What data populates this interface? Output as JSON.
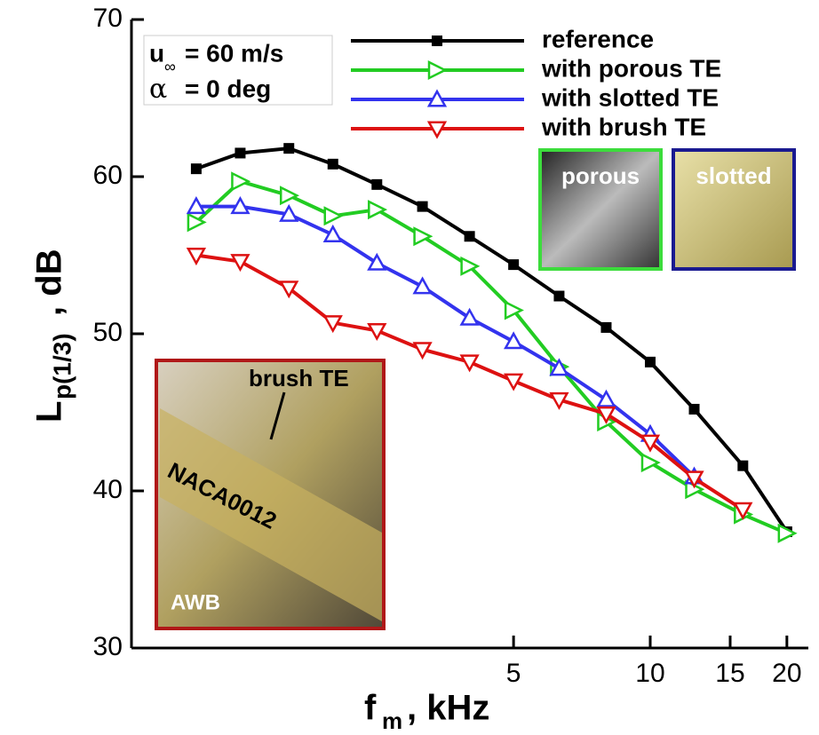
{
  "chart_data": {
    "type": "line",
    "ylabel_main": "L",
    "ylabel_sub": "p(1/3)",
    "ylabel_rest": ", dB",
    "xlabel_main": "f",
    "xlabel_sub": "m",
    "xlabel_rest": ", kHz",
    "x": [
      1,
      1.25,
      1.6,
      2,
      2.5,
      3.15,
      4,
      5,
      6.3,
      8,
      10,
      12.5,
      16,
      20
    ],
    "xscale": "log",
    "xlim": [
      0.72,
      22.3
    ],
    "xticks": [
      5,
      10,
      15,
      20
    ],
    "ylim": [
      30,
      70
    ],
    "yticks": [
      30,
      40,
      50,
      60,
      70
    ],
    "series": [
      {
        "name": "reference",
        "color": "#000000",
        "marker": "square",
        "values": [
          60.5,
          61.5,
          61.8,
          60.8,
          59.5,
          58.1,
          56.2,
          54.4,
          52.4,
          50.4,
          48.2,
          45.2,
          41.6,
          37.4
        ]
      },
      {
        "name": "with porous TE",
        "color": "#22cc22",
        "marker": "triangle-right",
        "values": [
          57.1,
          59.7,
          58.8,
          57.5,
          57.9,
          56.2,
          54.3,
          51.5,
          47.9,
          44.4,
          41.8,
          40.1,
          38.5,
          37.3
        ]
      },
      {
        "name": "with slotted TE",
        "color": "#3333ee",
        "marker": "triangle-up",
        "values": [
          58.1,
          58.1,
          57.6,
          56.3,
          54.5,
          53.0,
          51.0,
          49.5,
          47.8,
          45.8,
          43.6,
          40.9,
          null,
          null
        ]
      },
      {
        "name": "with brush TE",
        "color": "#dd1111",
        "marker": "triangle-down",
        "values": [
          55.0,
          54.6,
          52.9,
          50.7,
          50.2,
          49.0,
          48.2,
          47.0,
          45.8,
          44.9,
          43.1,
          40.8,
          38.8,
          null
        ]
      }
    ],
    "annotations": {
      "u": "u",
      "u_sub": "∞",
      "u_rest": "= 60 m/s",
      "alpha": "α",
      "alpha_rest": "= 0 deg"
    },
    "insets": {
      "porous": "porous",
      "slotted": "slotted",
      "brush": "brush TE",
      "airfoil": "NACA0012",
      "facility": "AWB"
    }
  }
}
